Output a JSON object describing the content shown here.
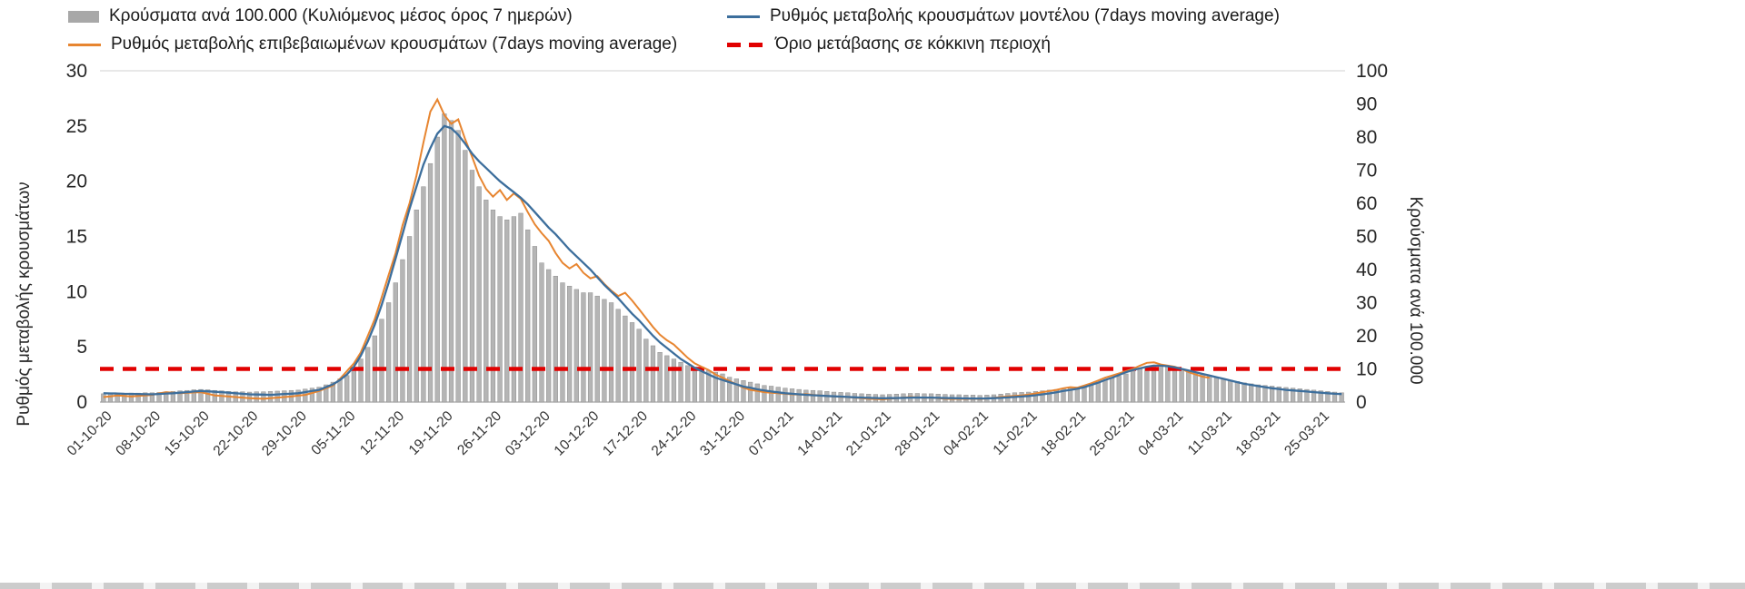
{
  "colors": {
    "bar": "#b5b5b5",
    "bar_stroke": "#8f8f8f",
    "model_line": "#3c6e9c",
    "confirmed_line": "#e78530",
    "threshold": "#e10000",
    "axis_line": "#a6a6a6",
    "plot_top_border": "#d9d9d9",
    "tick_text": "#262626"
  },
  "chart_data": {
    "type": "bar+line combo, dual y-axis",
    "title": "",
    "x_unit": "daily",
    "start_date": "01-10-20",
    "n_points": 179,
    "x_tick_step_days": 7,
    "x_tick_labels": [
      "01-10-20",
      "08-10-20",
      "15-10-20",
      "22-10-20",
      "29-10-20",
      "05-11-20",
      "12-11-20",
      "19-11-20",
      "26-11-20",
      "03-12-20",
      "10-12-20",
      "17-12-20",
      "24-12-20",
      "31-12-20",
      "07-01-21",
      "14-01-21",
      "21-01-21",
      "28-01-21",
      "04-02-21",
      "11-02-21",
      "18-02-21",
      "25-02-21",
      "04-03-21",
      "11-03-21",
      "18-03-21",
      "25-03-21"
    ],
    "left_axis": {
      "label": "Ρυθμός μεταβολής κρουσμάτων",
      "min": 0,
      "max": 30,
      "ticks": [
        0,
        5,
        10,
        15,
        20,
        25,
        30
      ]
    },
    "right_axis": {
      "label": "Κρούσματα ανά 100.000",
      "min": 0,
      "max": 100,
      "ticks": [
        0,
        10,
        20,
        30,
        40,
        50,
        60,
        70,
        80,
        90,
        100
      ]
    },
    "threshold": {
      "label": "Όριο μετάβασης σε κόκκινη περιοχή",
      "axis": "left",
      "value": 3
    },
    "legend_position": "top",
    "grid": "none",
    "series": [
      {
        "name": "Κρούσματα ανά 100.000 (Κυλιόμενος μέσος όρος 7 ημερών)",
        "type": "bar",
        "axis": "right",
        "values": [
          2.5,
          2.5,
          2.6,
          2.6,
          2.7,
          2.7,
          2.8,
          2.8,
          2.9,
          3.1,
          3.2,
          3.4,
          3.5,
          3.7,
          3.8,
          3.7,
          3.5,
          3.4,
          3.2,
          3.1,
          3.1,
          3.0,
          3.1,
          3.1,
          3.2,
          3.3,
          3.4,
          3.5,
          3.6,
          3.9,
          4.2,
          4.5,
          5.2,
          6.0,
          7.0,
          8.0,
          10.5,
          13,
          16.5,
          20,
          25,
          30,
          36,
          43,
          50,
          58,
          65,
          72,
          80,
          87,
          85,
          82,
          76,
          70,
          65,
          61,
          58,
          56,
          55,
          56,
          57,
          52,
          47,
          42,
          40,
          38,
          36,
          35,
          34,
          33,
          33,
          32,
          31,
          30,
          28,
          26,
          24,
          22,
          19,
          17,
          15,
          14,
          13,
          12,
          11,
          10.5,
          10,
          9.5,
          9,
          8.5,
          7.5,
          7,
          6.5,
          6,
          5.5,
          5,
          4.8,
          4.5,
          4.2,
          4,
          3.8,
          3.6,
          3.5,
          3.4,
          3.2,
          3,
          2.9,
          2.8,
          2.6,
          2.5,
          2.4,
          2.3,
          2.2,
          2.3,
          2.4,
          2.5,
          2.6,
          2.6,
          2.5,
          2.5,
          2.4,
          2.3,
          2.2,
          2.2,
          2.1,
          2.1,
          2.0,
          2.1,
          2.2,
          2.4,
          2.6,
          2.8,
          2.9,
          3.0,
          3.2,
          3.4,
          3.6,
          3.8,
          4.1,
          4.3,
          4.5,
          5.0,
          5.5,
          6.0,
          6.6,
          7.2,
          7.8,
          8.5,
          9.2,
          10,
          10.8,
          11,
          11,
          10.8,
          10.5,
          10,
          9.5,
          9,
          8.5,
          8,
          7.5,
          7,
          6.6,
          6.2,
          5.8,
          5.5,
          5.2,
          5,
          4.8,
          4.6,
          4.4,
          4.2,
          4,
          3.8,
          3.6,
          3.4,
          3.2,
          3,
          2.8
        ]
      },
      {
        "name": "Ρυθμός μεταβολής κρουσμάτων μοντέλου (7days moving average)",
        "type": "line",
        "axis": "left",
        "values": [
          0.8,
          0.78,
          0.77,
          0.75,
          0.74,
          0.72,
          0.71,
          0.7,
          0.73,
          0.77,
          0.8,
          0.85,
          0.9,
          0.95,
          1.0,
          0.97,
          0.93,
          0.9,
          0.85,
          0.8,
          0.75,
          0.7,
          0.68,
          0.67,
          0.65,
          0.69,
          0.73,
          0.76,
          0.8,
          0.9,
          1.0,
          1.1,
          1.35,
          1.6,
          2.0,
          2.5,
          3.2,
          4.2,
          5.5,
          7.0,
          8.8,
          10.8,
          13.0,
          15.2,
          17.5,
          19.5,
          21.5,
          23.0,
          24.3,
          25.0,
          24.8,
          24.2,
          23.4,
          22.5,
          21.8,
          21.2,
          20.6,
          20.0,
          19.5,
          19.0,
          18.5,
          17.9,
          17.2,
          16.5,
          15.8,
          15.2,
          14.5,
          13.8,
          13.2,
          12.6,
          12.0,
          11.3,
          10.6,
          10.0,
          9.4,
          8.7,
          8.0,
          7.4,
          6.7,
          6.0,
          5.4,
          4.9,
          4.4,
          3.9,
          3.5,
          3.1,
          2.8,
          2.5,
          2.2,
          2.0,
          1.8,
          1.6,
          1.4,
          1.3,
          1.15,
          1.05,
          0.95,
          0.88,
          0.8,
          0.75,
          0.7,
          0.66,
          0.62,
          0.58,
          0.55,
          0.52,
          0.49,
          0.46,
          0.43,
          0.4,
          0.38,
          0.36,
          0.34,
          0.35,
          0.36,
          0.38,
          0.4,
          0.41,
          0.4,
          0.4,
          0.38,
          0.36,
          0.35,
          0.34,
          0.33,
          0.32,
          0.32,
          0.33,
          0.35,
          0.38,
          0.42,
          0.46,
          0.5,
          0.55,
          0.62,
          0.7,
          0.78,
          0.88,
          1.0,
          1.1,
          1.2,
          1.35,
          1.55,
          1.75,
          2.0,
          2.2,
          2.45,
          2.7,
          2.9,
          3.05,
          3.2,
          3.3,
          3.3,
          3.25,
          3.15,
          3.0,
          2.85,
          2.7,
          2.55,
          2.4,
          2.25,
          2.1,
          1.95,
          1.8,
          1.65,
          1.55,
          1.45,
          1.35,
          1.25,
          1.18,
          1.1,
          1.05,
          1.0,
          0.95,
          0.9,
          0.85,
          0.8,
          0.75,
          0.72
        ]
      },
      {
        "name": "Ρυθμός μεταβολής επιβεβαιωμένων κρουσμάτων (7days moving average)",
        "type": "line",
        "axis": "left",
        "values": [
          0.45,
          0.52,
          0.6,
          0.55,
          0.5,
          0.55,
          0.6,
          0.65,
          0.78,
          0.9,
          0.85,
          0.8,
          0.83,
          0.87,
          0.9,
          0.75,
          0.6,
          0.55,
          0.5,
          0.45,
          0.4,
          0.35,
          0.32,
          0.3,
          0.35,
          0.4,
          0.45,
          0.5,
          0.58,
          0.65,
          0.82,
          1.0,
          1.25,
          1.5,
          2.1,
          2.8,
          3.5,
          4.5,
          6.0,
          7.5,
          9.5,
          11.5,
          13.5,
          16.0,
          18.0,
          20.5,
          23.5,
          26.3,
          27.4,
          26.0,
          25.2,
          25.6,
          23.8,
          22.2,
          20.5,
          19.3,
          18.6,
          19.2,
          18.3,
          18.9,
          18.4,
          17.2,
          16.1,
          15.3,
          14.6,
          13.5,
          12.6,
          12.1,
          12.5,
          11.7,
          11.2,
          11.4,
          10.7,
          10.1,
          9.6,
          9.9,
          9.2,
          8.4,
          7.6,
          6.8,
          6.1,
          5.6,
          5.2,
          4.6,
          4.0,
          3.5,
          3.2,
          2.9,
          2.5,
          2.2,
          1.9,
          1.6,
          1.3,
          1.1,
          1.0,
          0.9,
          0.85,
          0.8,
          0.75,
          0.7,
          0.68,
          0.72,
          0.65,
          0.6,
          0.55,
          0.5,
          0.48,
          0.45,
          0.4,
          0.35,
          0.3,
          0.28,
          0.25,
          0.3,
          0.35,
          0.4,
          0.45,
          0.42,
          0.38,
          0.4,
          0.35,
          0.3,
          0.28,
          0.3,
          0.28,
          0.3,
          0.28,
          0.32,
          0.38,
          0.45,
          0.5,
          0.55,
          0.6,
          0.68,
          0.78,
          0.9,
          1.0,
          1.1,
          1.25,
          1.35,
          1.3,
          1.5,
          1.7,
          1.95,
          2.2,
          2.4,
          2.6,
          2.8,
          3.0,
          3.3,
          3.55,
          3.6,
          3.4,
          3.3,
          3.2,
          3.0,
          2.7,
          2.5,
          2.3,
          2.2,
          null,
          null,
          null,
          null,
          null,
          null,
          null,
          null,
          null,
          null,
          null,
          null,
          null,
          null,
          null,
          null,
          null,
          null,
          null
        ]
      }
    ]
  }
}
